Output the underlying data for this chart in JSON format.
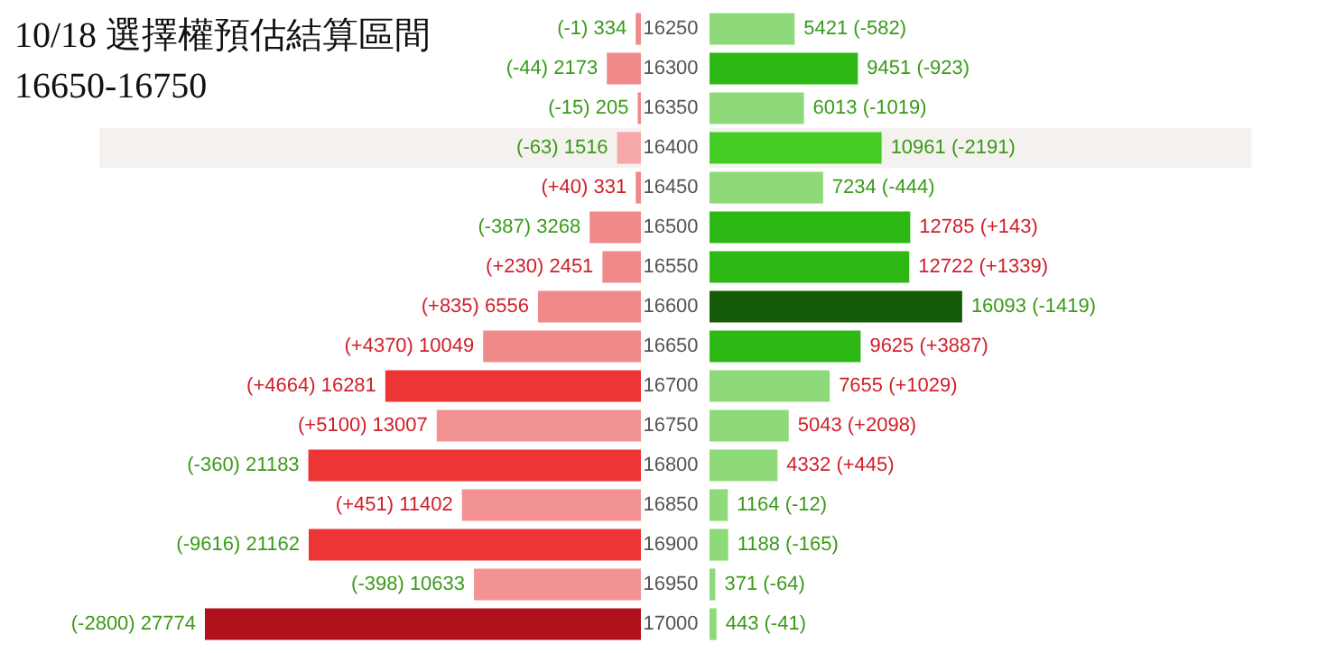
{
  "chart_data": [
    {
      "type": "bar",
      "orientation": "horizontal",
      "title": "10/18 選擇權預估結算區間",
      "subtitle": "16650-16750",
      "categories": [
        "16250",
        "16300",
        "16350",
        "16400",
        "16450",
        "16500",
        "16550",
        "16600",
        "16650",
        "16700",
        "16750",
        "16800",
        "16850",
        "16900",
        "16950",
        "17000"
      ],
      "values": [
        334,
        2173,
        205,
        1516,
        331,
        3268,
        2451,
        6556,
        10049,
        16281,
        13007,
        21183,
        11402,
        21162,
        10633,
        27774
      ],
      "colors": [
        "#f08a8a",
        "#f08a8a",
        "#f08a8a",
        "#f7a8a8",
        "#f08a8a",
        "#f08a8a",
        "#f08a8a",
        "#f08a8a",
        "#f08a8a",
        "#ee3535",
        "#f29292",
        "#ee3535",
        "#f29292",
        "#ee3535",
        "#f29292",
        "#b0111a"
      ],
      "value_labels": [
        "(-1) 334",
        "(-44) 2173",
        "(-15) 205",
        "(-63) 1516",
        "(+40) 331",
        "(-387) 3268",
        "(+230) 2451",
        "(+835) 6556",
        "(+4370) 10049",
        "(+4664) 16281",
        "(+5100) 13007",
        "(-360) 21183",
        "(+451) 11402",
        "(-9616) 21162",
        "(-398) 10633",
        "(-2800) 27774"
      ],
      "xlim": [
        34500,
        0
      ],
      "tick_labels": false,
      "bands": [
        {
          "axis": "y",
          "from": "16400",
          "to": "16400",
          "color": "#f4f1ee"
        }
      ]
    },
    {
      "type": "bar",
      "orientation": "horizontal",
      "categories": [
        "16250",
        "16300",
        "16350",
        "16400",
        "16450",
        "16500",
        "16550",
        "16600",
        "16650",
        "16700",
        "16750",
        "16800",
        "16850",
        "16900",
        "16950",
        "17000"
      ],
      "values": [
        5421,
        9451,
        6013,
        10961,
        7234,
        12785,
        12722,
        16093,
        9625,
        7655,
        5043,
        4332,
        1164,
        1188,
        371,
        443
      ],
      "colors": [
        "#8ed97a",
        "#2db814",
        "#8ed97a",
        "#45cc25",
        "#8ed97a",
        "#2db814",
        "#2db814",
        "#155c08",
        "#2db814",
        "#8ed97a",
        "#8ed97a",
        "#8ed97a",
        "#8ed97a",
        "#8ed97a",
        "#8ed97a",
        "#8ed97a"
      ],
      "value_labels": [
        "5421 (-582)",
        "9451 (-923)",
        "6013 (-1019)",
        "10961 (-2191)",
        "7234 (-444)",
        "12785 (+143)",
        "12722 (+1339)",
        "16093 (-1419)",
        "9625 (+3887)",
        "7655 (+1029)",
        "5043 (+2098)",
        "4332 (+445)",
        "1164 (-12)",
        "1188 (-165)",
        "371 (-64)",
        "443 (-41)"
      ],
      "xlim": [
        0,
        34500
      ],
      "tick_labels": "y",
      "bands": [
        {
          "axis": "y",
          "from": "16400",
          "to": "16400",
          "color": "#f4f1ee"
        }
      ]
    }
  ]
}
